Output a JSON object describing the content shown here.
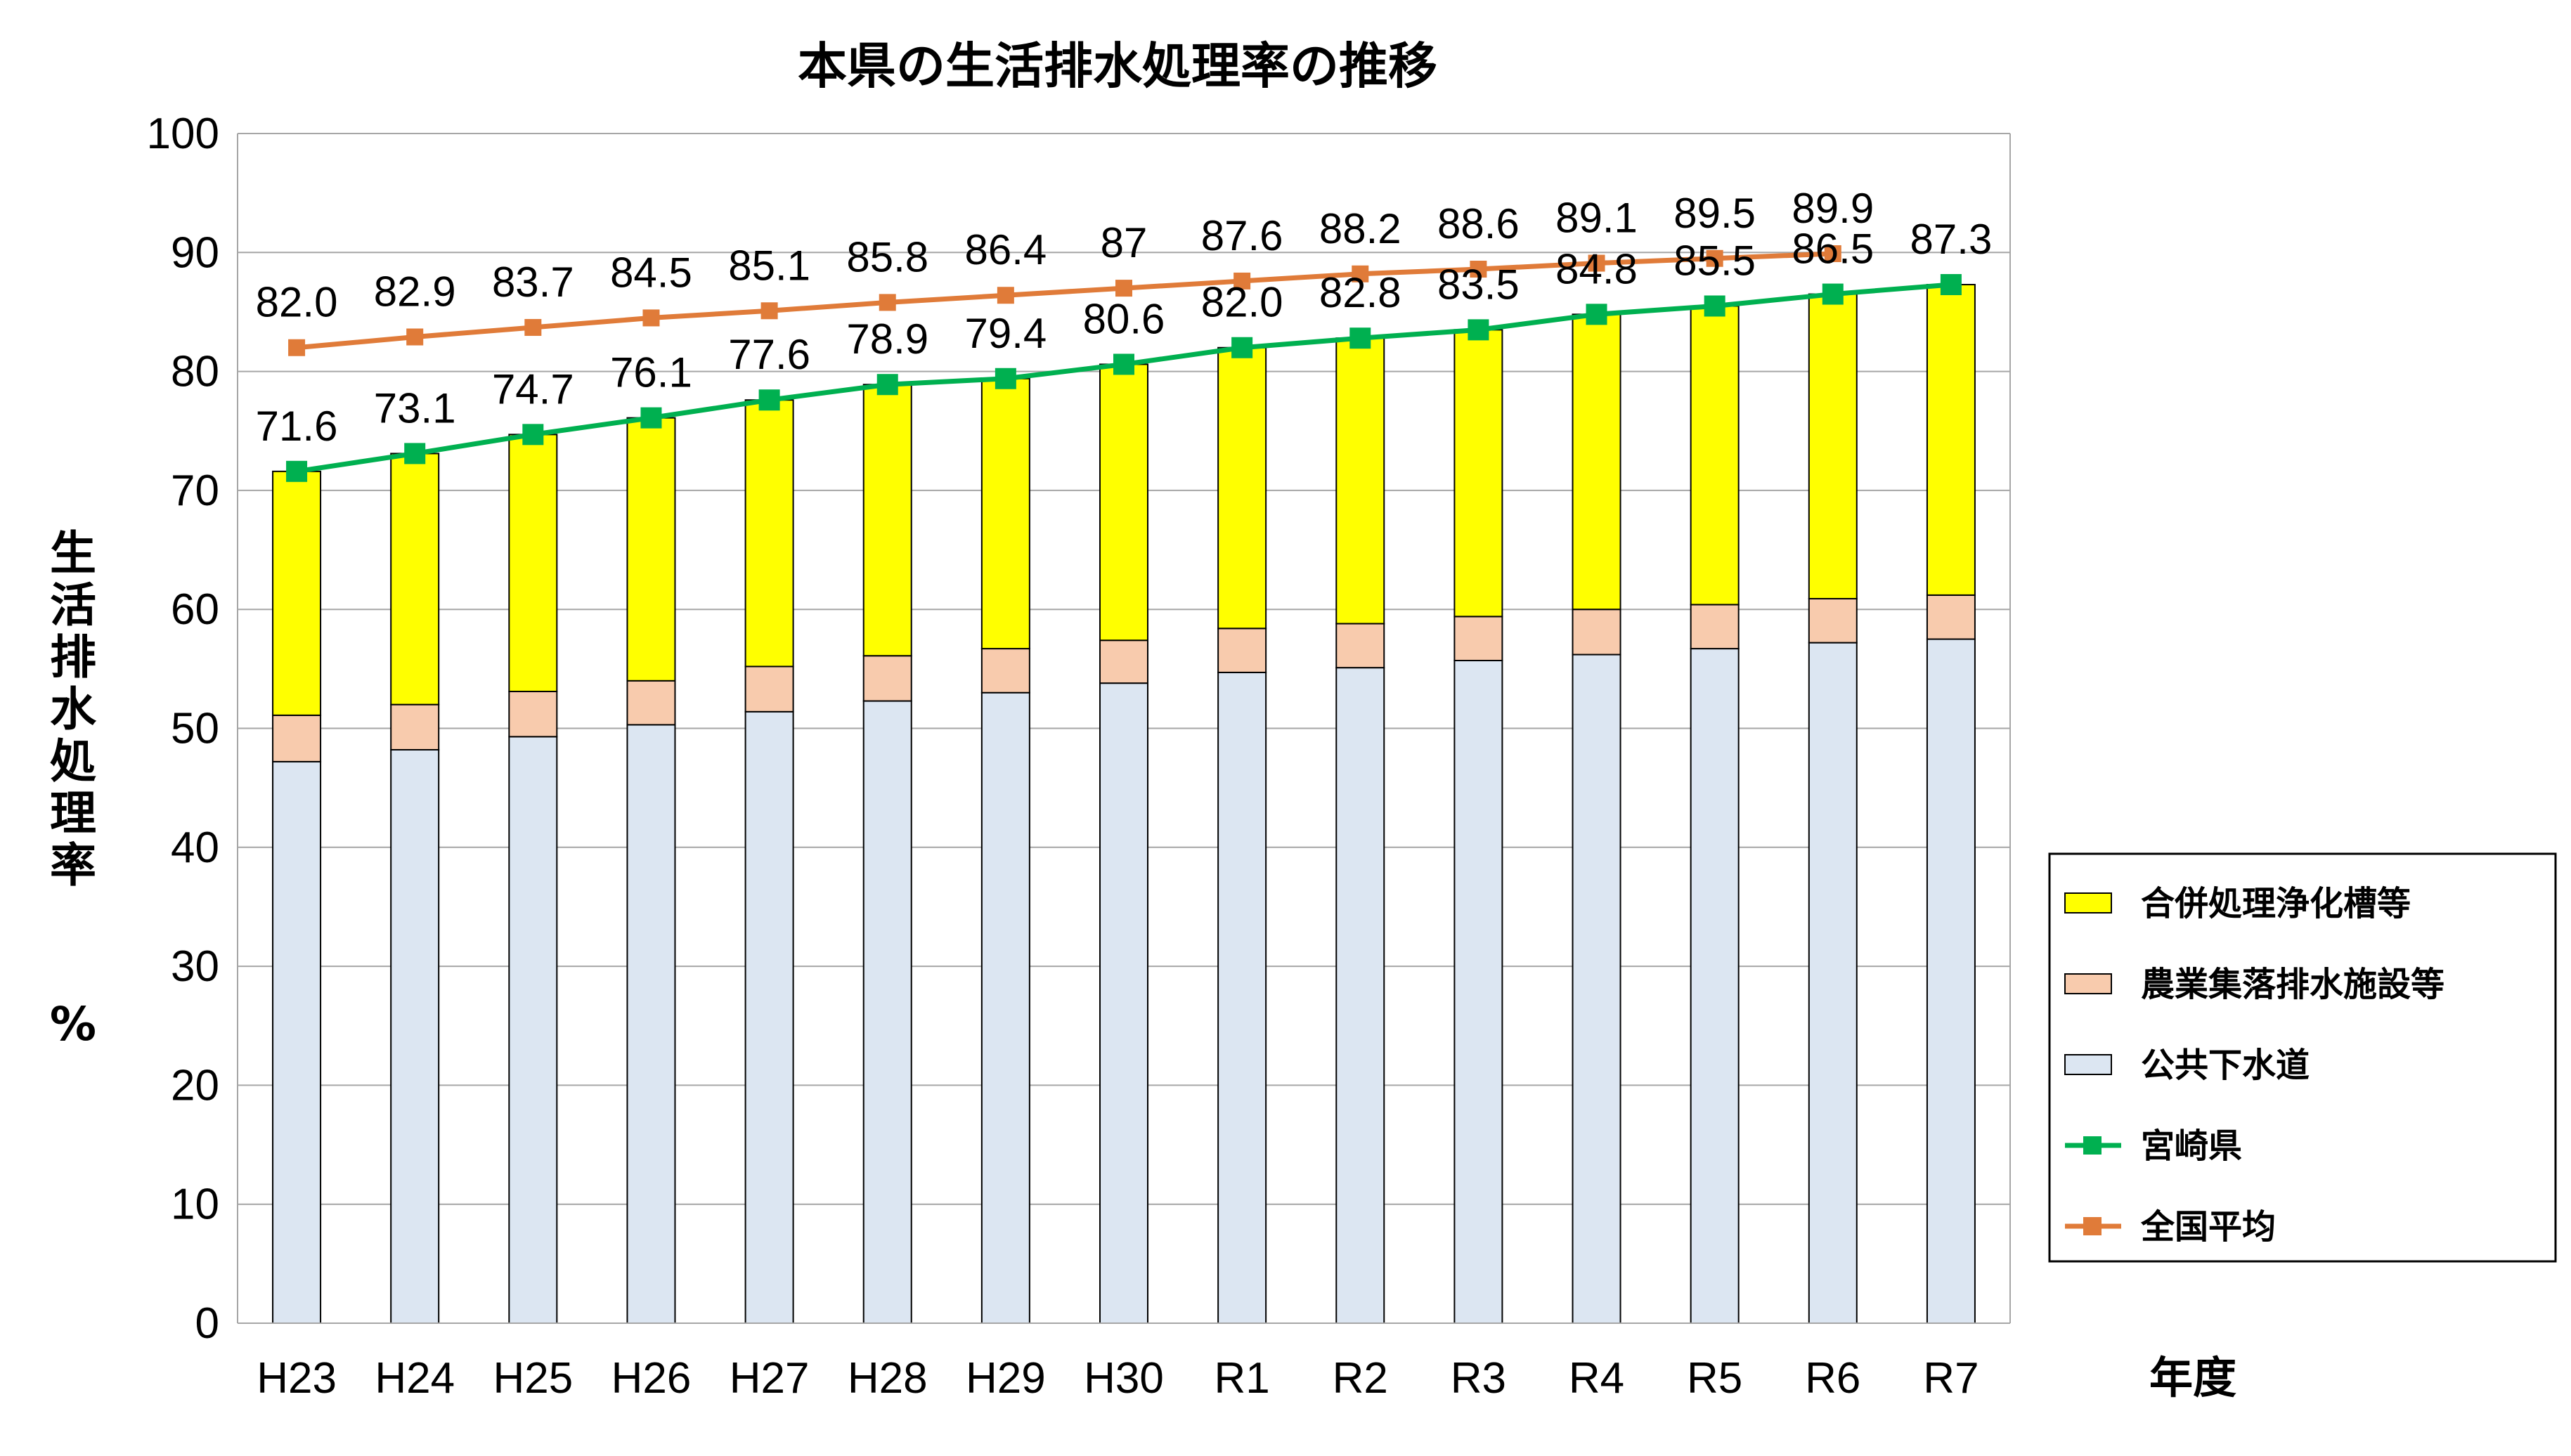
{
  "chart_data": {
    "type": "bar",
    "title": "本県の生活排水処理率の推移",
    "ylabel": "生活排水処理率",
    "yunit": "%",
    "xlabel": "年度",
    "ylim": [
      0,
      100
    ],
    "yticks": [
      "0",
      "10",
      "20",
      "30",
      "40",
      "50",
      "60",
      "70",
      "80",
      "90",
      "100"
    ],
    "grid": true,
    "legend_position": "right",
    "categories": [
      "H23",
      "H24",
      "H25",
      "H26",
      "H27",
      "H28",
      "H29",
      "H30",
      "R1",
      "R2",
      "R3",
      "R4",
      "R5",
      "R6",
      "R7"
    ],
    "stacked_bars": [
      {
        "name": "公共下水道",
        "color": "#dce6f2",
        "values": [
          47.2,
          48.2,
          49.3,
          50.3,
          51.4,
          52.3,
          53.0,
          53.8,
          54.7,
          55.1,
          55.7,
          56.2,
          56.7,
          57.2,
          57.5
        ]
      },
      {
        "name": "農業集落排水施設等",
        "color": "#f8cbad",
        "values": [
          3.9,
          3.8,
          3.8,
          3.7,
          3.8,
          3.8,
          3.7,
          3.6,
          3.7,
          3.7,
          3.7,
          3.8,
          3.7,
          3.7,
          3.7
        ]
      },
      {
        "name": "合併処理浄化槽等",
        "color": "#ffff00",
        "values": [
          20.5,
          21.1,
          21.6,
          22.1,
          22.4,
          22.8,
          22.7,
          23.2,
          23.6,
          24.0,
          24.1,
          24.8,
          25.1,
          25.6,
          26.1
        ]
      }
    ],
    "lines": [
      {
        "name": "宮崎県",
        "color": "#00b050",
        "values": [
          71.6,
          73.1,
          74.7,
          76.1,
          77.6,
          78.9,
          79.4,
          80.6,
          82.0,
          82.8,
          83.5,
          84.8,
          85.5,
          86.5,
          87.3
        ],
        "labels": [
          "71.6",
          "73.1",
          "74.7",
          "76.1",
          "77.6",
          "78.9",
          "79.4",
          "80.6",
          "82.0",
          "82.8",
          "83.5",
          "84.8",
          "85.5",
          "86.5",
          "87.3"
        ]
      },
      {
        "name": "全国平均",
        "color": "#e07b39",
        "values": [
          82.0,
          82.9,
          83.7,
          84.5,
          85.1,
          85.8,
          86.4,
          87.0,
          87.6,
          88.2,
          88.6,
          89.1,
          89.5,
          89.9,
          null
        ],
        "labels": [
          "82.0",
          "82.9",
          "83.7",
          "84.5",
          "85.1",
          "85.8",
          "86.4",
          "87",
          "87.6",
          "88.2",
          "88.6",
          "89.1",
          "89.5",
          "89.9",
          ""
        ]
      }
    ],
    "legend_order": [
      "合併処理浄化槽等",
      "農業集落排水施設等",
      "公共下水道",
      "宮崎県",
      "全国平均"
    ]
  }
}
